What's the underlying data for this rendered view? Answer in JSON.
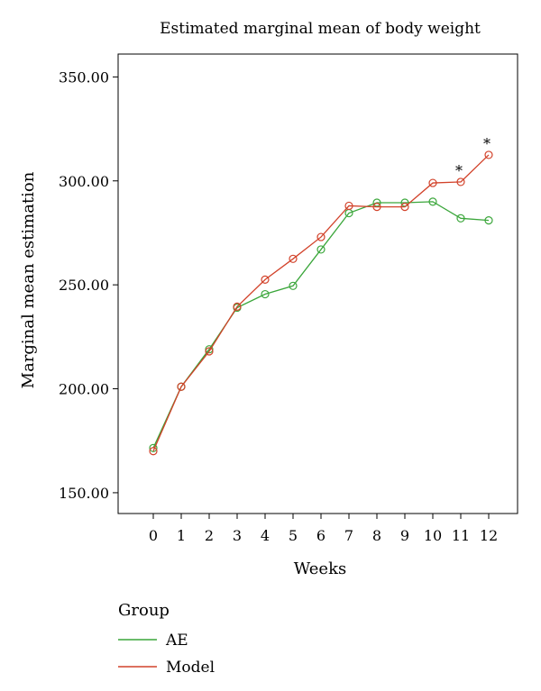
{
  "chart_data": {
    "type": "line",
    "title": "Estimated marginal mean of body weight",
    "xlabel": "Weeks",
    "ylabel": "Marginal mean estimation",
    "categories": [
      "0",
      "1",
      "2",
      "3",
      "4",
      "5",
      "6",
      "7",
      "8",
      "9",
      "10",
      "11",
      "12"
    ],
    "yticks": [
      "150.00",
      "200.00",
      "250.00",
      "300.00",
      "350.00"
    ],
    "ylim": [
      140,
      361
    ],
    "grid": false,
    "legend": {
      "title": "Group",
      "placement": "bottom-left"
    },
    "series": [
      {
        "name": "AE",
        "color": "#3aa63a",
        "values": [
          171.5,
          201,
          219,
          239,
          245.5,
          249.5,
          267,
          284.5,
          289.5,
          289.5,
          290,
          282,
          281
        ]
      },
      {
        "name": "Model",
        "color": "#d2422a",
        "values": [
          170,
          201,
          218,
          239.5,
          252.5,
          262.5,
          273,
          288,
          287.5,
          287.5,
          299,
          299.5,
          312.5
        ]
      }
    ],
    "annotations": [
      {
        "text": "*",
        "series": "Model",
        "category": "11"
      },
      {
        "text": "*",
        "series": "Model",
        "category": "12"
      }
    ]
  }
}
